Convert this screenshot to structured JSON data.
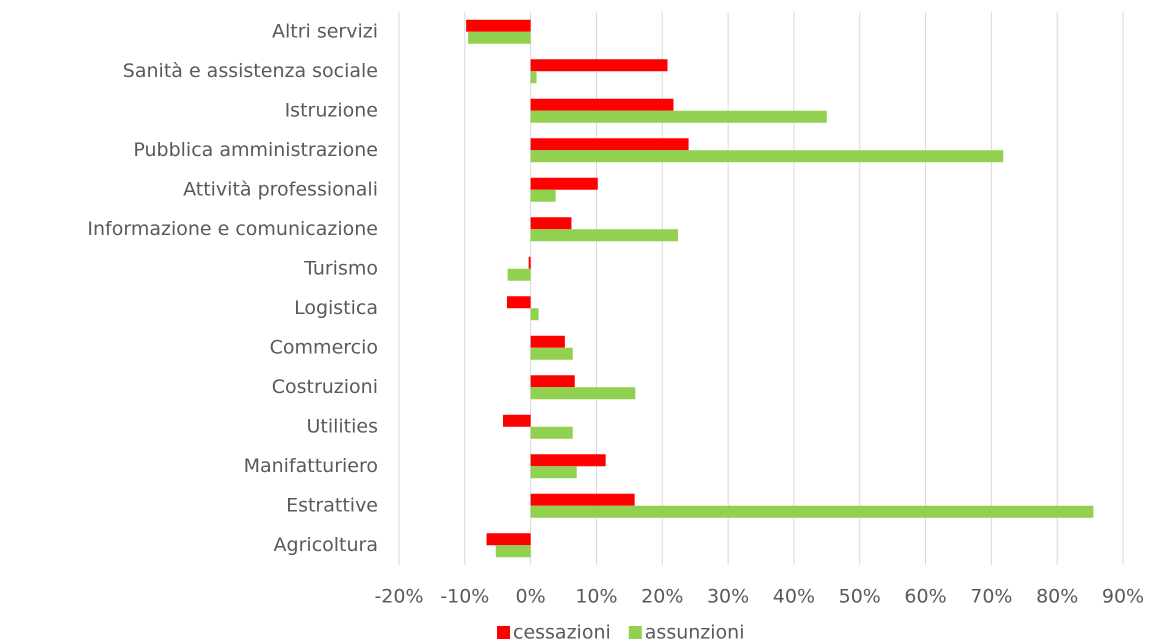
{
  "chart_data": {
    "type": "hbar",
    "categories": [
      "Altri servizi",
      "Sanità e assistenza sociale",
      "Istruzione",
      "Pubblica amministrazione",
      "Attività professionali",
      "Informazione e comunicazione",
      "Turismo",
      "Logistica",
      "Commercio",
      "Costruzioni",
      "Utilities",
      "Manifatturiero",
      "Estrattive",
      "Agricoltura"
    ],
    "series": [
      {
        "name": "cessazioni",
        "color": "#ff0000",
        "values": [
          -9.8,
          20.8,
          21.7,
          24,
          10.2,
          6.2,
          -0.3,
          -3.6,
          5.2,
          6.7,
          -4.2,
          11.4,
          15.8,
          -6.7
        ]
      },
      {
        "name": "assunzioni",
        "color": "#92d050",
        "values": [
          -9.5,
          0.9,
          45,
          71.8,
          3.8,
          22.4,
          -3.5,
          1.2,
          6.4,
          15.9,
          6.4,
          7,
          85.5,
          -5.3
        ]
      }
    ],
    "xlim": [
      -20,
      90
    ],
    "xticks": [
      {
        "value": -20,
        "label": "-20%"
      },
      {
        "value": -10,
        "label": "-10%"
      },
      {
        "value": 0,
        "label": "0%"
      },
      {
        "value": 10,
        "label": "10%"
      },
      {
        "value": 20,
        "label": "20%"
      },
      {
        "value": 30,
        "label": "30%"
      },
      {
        "value": 40,
        "label": "40%"
      },
      {
        "value": 50,
        "label": "50%"
      },
      {
        "value": 60,
        "label": "60%"
      },
      {
        "value": 70,
        "label": "70%"
      },
      {
        "value": 80,
        "label": "80%"
      },
      {
        "value": 90,
        "label": "90%"
      }
    ],
    "grid": true,
    "legend": "bottom"
  }
}
